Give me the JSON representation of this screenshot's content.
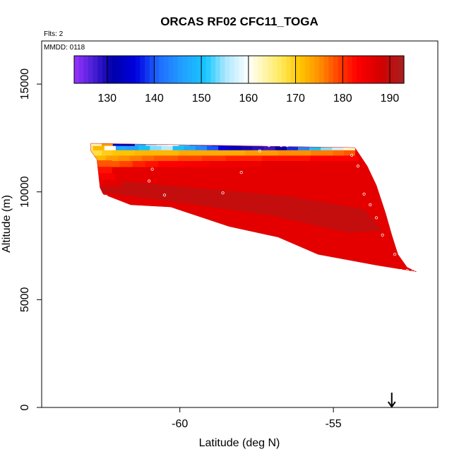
{
  "chart_data": {
    "type": "heatmap",
    "title": "ORCAS RF02 CFC11_TOGA",
    "flights_note": "Flts: 2",
    "date_note": "MMDD: 0118",
    "xlabel": "Latitude (deg N)",
    "ylabel": "Altitude (m)",
    "xlim": [
      -64.5,
      -51.6
    ],
    "ylim": [
      0,
      17000
    ],
    "x_ticks": [
      -60,
      -55
    ],
    "x_tick_labels": [
      "-60",
      "-55"
    ],
    "y_ticks": [
      0,
      5000,
      10000,
      15000
    ],
    "y_tick_labels": [
      "0",
      "5000",
      "10000",
      "15000"
    ],
    "colorbar": {
      "min": 123,
      "max": 193,
      "ticks": [
        130,
        140,
        150,
        160,
        170,
        180,
        190
      ],
      "tick_labels": [
        "130",
        "140",
        "150",
        "160",
        "170",
        "180",
        "190"
      ],
      "stops": [
        [
          123,
          "#9a34ff"
        ],
        [
          127,
          "#4a1fd6"
        ],
        [
          131,
          "#0000a8"
        ],
        [
          136,
          "#0000e0"
        ],
        [
          141,
          "#1f6cff"
        ],
        [
          146,
          "#22a0ff"
        ],
        [
          151,
          "#16c8ff"
        ],
        [
          155,
          "#a8e6ff"
        ],
        [
          160,
          "#ffffff"
        ],
        [
          163,
          "#fff7b4"
        ],
        [
          167,
          "#ffe85a"
        ],
        [
          171,
          "#ffc400"
        ],
        [
          175,
          "#ff9000"
        ],
        [
          179,
          "#ff4400"
        ],
        [
          183,
          "#ff0000"
        ],
        [
          188,
          "#d40000"
        ],
        [
          193,
          "#a62020"
        ]
      ]
    },
    "curtain": {
      "outline": [
        [
          -62.9,
          12250
        ],
        [
          -54.3,
          12050
        ],
        [
          -53.9,
          11200
        ],
        [
          -53.6,
          10300
        ],
        [
          -53.3,
          9000
        ],
        [
          -53.1,
          8000
        ],
        [
          -52.9,
          7100
        ],
        [
          -52.6,
          6500
        ],
        [
          -52.3,
          6300
        ],
        [
          -53.6,
          6600
        ],
        [
          -55.5,
          7100
        ],
        [
          -56.8,
          7900
        ],
        [
          -58.4,
          8400
        ],
        [
          -60.3,
          9300
        ],
        [
          -61.6,
          9400
        ],
        [
          -62.5,
          9900
        ],
        [
          -62.6,
          10200
        ],
        [
          -62.7,
          11500
        ],
        [
          -62.9,
          11900
        ]
      ],
      "top_fill_value": 187,
      "deep_fill_value": 191,
      "base_fill_value": 186,
      "bands": [
        {
          "alt": 12250,
          "values": [
            163,
            174,
            133,
            131,
            148,
            155,
            158,
            160,
            152,
            145,
            140,
            134,
            131,
            128,
            127,
            125,
            126,
            133,
            141,
            147,
            155,
            158,
            161,
            163
          ],
          "lat_start": -62.9,
          "lat_end": -54.3
        },
        {
          "alt": 12000,
          "values": [
            166,
            172,
            160,
            147,
            146,
            150,
            154,
            156,
            150,
            147,
            144,
            140,
            136,
            133,
            130,
            129,
            128,
            132,
            138,
            143,
            150,
            154,
            157,
            162
          ],
          "lat_start": -63.2,
          "lat_end": -54.3
        },
        {
          "alt": 11800,
          "values": [
            168,
            170,
            171,
            171,
            172,
            172,
            172,
            172,
            173,
            173,
            173,
            173,
            173,
            173,
            174,
            174,
            174,
            175,
            175,
            175,
            176,
            176,
            177,
            178
          ],
          "lat_start": -62.9,
          "lat_end": -54.3
        },
        {
          "alt": 11550,
          "values": [
            172,
            174,
            175,
            176,
            177,
            178,
            178,
            179,
            179,
            180,
            180,
            181,
            181,
            181,
            182,
            182,
            182,
            182,
            183,
            183,
            183,
            183
          ],
          "lat_start": -62.8,
          "lat_end": -54.2
        },
        {
          "alt": 11300,
          "values": [
            176,
            178,
            179,
            181,
            182,
            183,
            183,
            184,
            184,
            185,
            185,
            185,
            185,
            186,
            186,
            186,
            186,
            186,
            186,
            186,
            186
          ],
          "lat_start": -62.8,
          "lat_end": -54.0
        }
      ]
    },
    "observations": [
      [
        -56.7,
        12150
      ],
      [
        -56.5,
        12150
      ],
      [
        -56.3,
        12200
      ],
      [
        -56.1,
        12200
      ],
      [
        -55.9,
        12250
      ],
      [
        -55.7,
        12250
      ],
      [
        -55.5,
        12250
      ],
      [
        -55.3,
        12250
      ],
      [
        -55.1,
        12250
      ],
      [
        -57.1,
        12150
      ],
      [
        -57.4,
        11900
      ],
      [
        -54.4,
        11700
      ],
      [
        -60.9,
        11050
      ],
      [
        -58.0,
        10900
      ],
      [
        -54.2,
        11200
      ],
      [
        -61.0,
        10500
      ],
      [
        -60.5,
        9850
      ],
      [
        -58.6,
        9950
      ],
      [
        -54.0,
        9900
      ],
      [
        -53.8,
        9400
      ],
      [
        -60.2,
        9050
      ],
      [
        -62.4,
        9800
      ],
      [
        -53.6,
        8800
      ],
      [
        -53.4,
        8000
      ],
      [
        -53.0,
        7100
      ],
      [
        -52.8,
        6350
      ],
      [
        -52.6,
        6350
      ],
      [
        -52.4,
        6350
      ]
    ],
    "marker": {
      "type": "arrow",
      "lat": -53.1,
      "alt": 0
    }
  }
}
